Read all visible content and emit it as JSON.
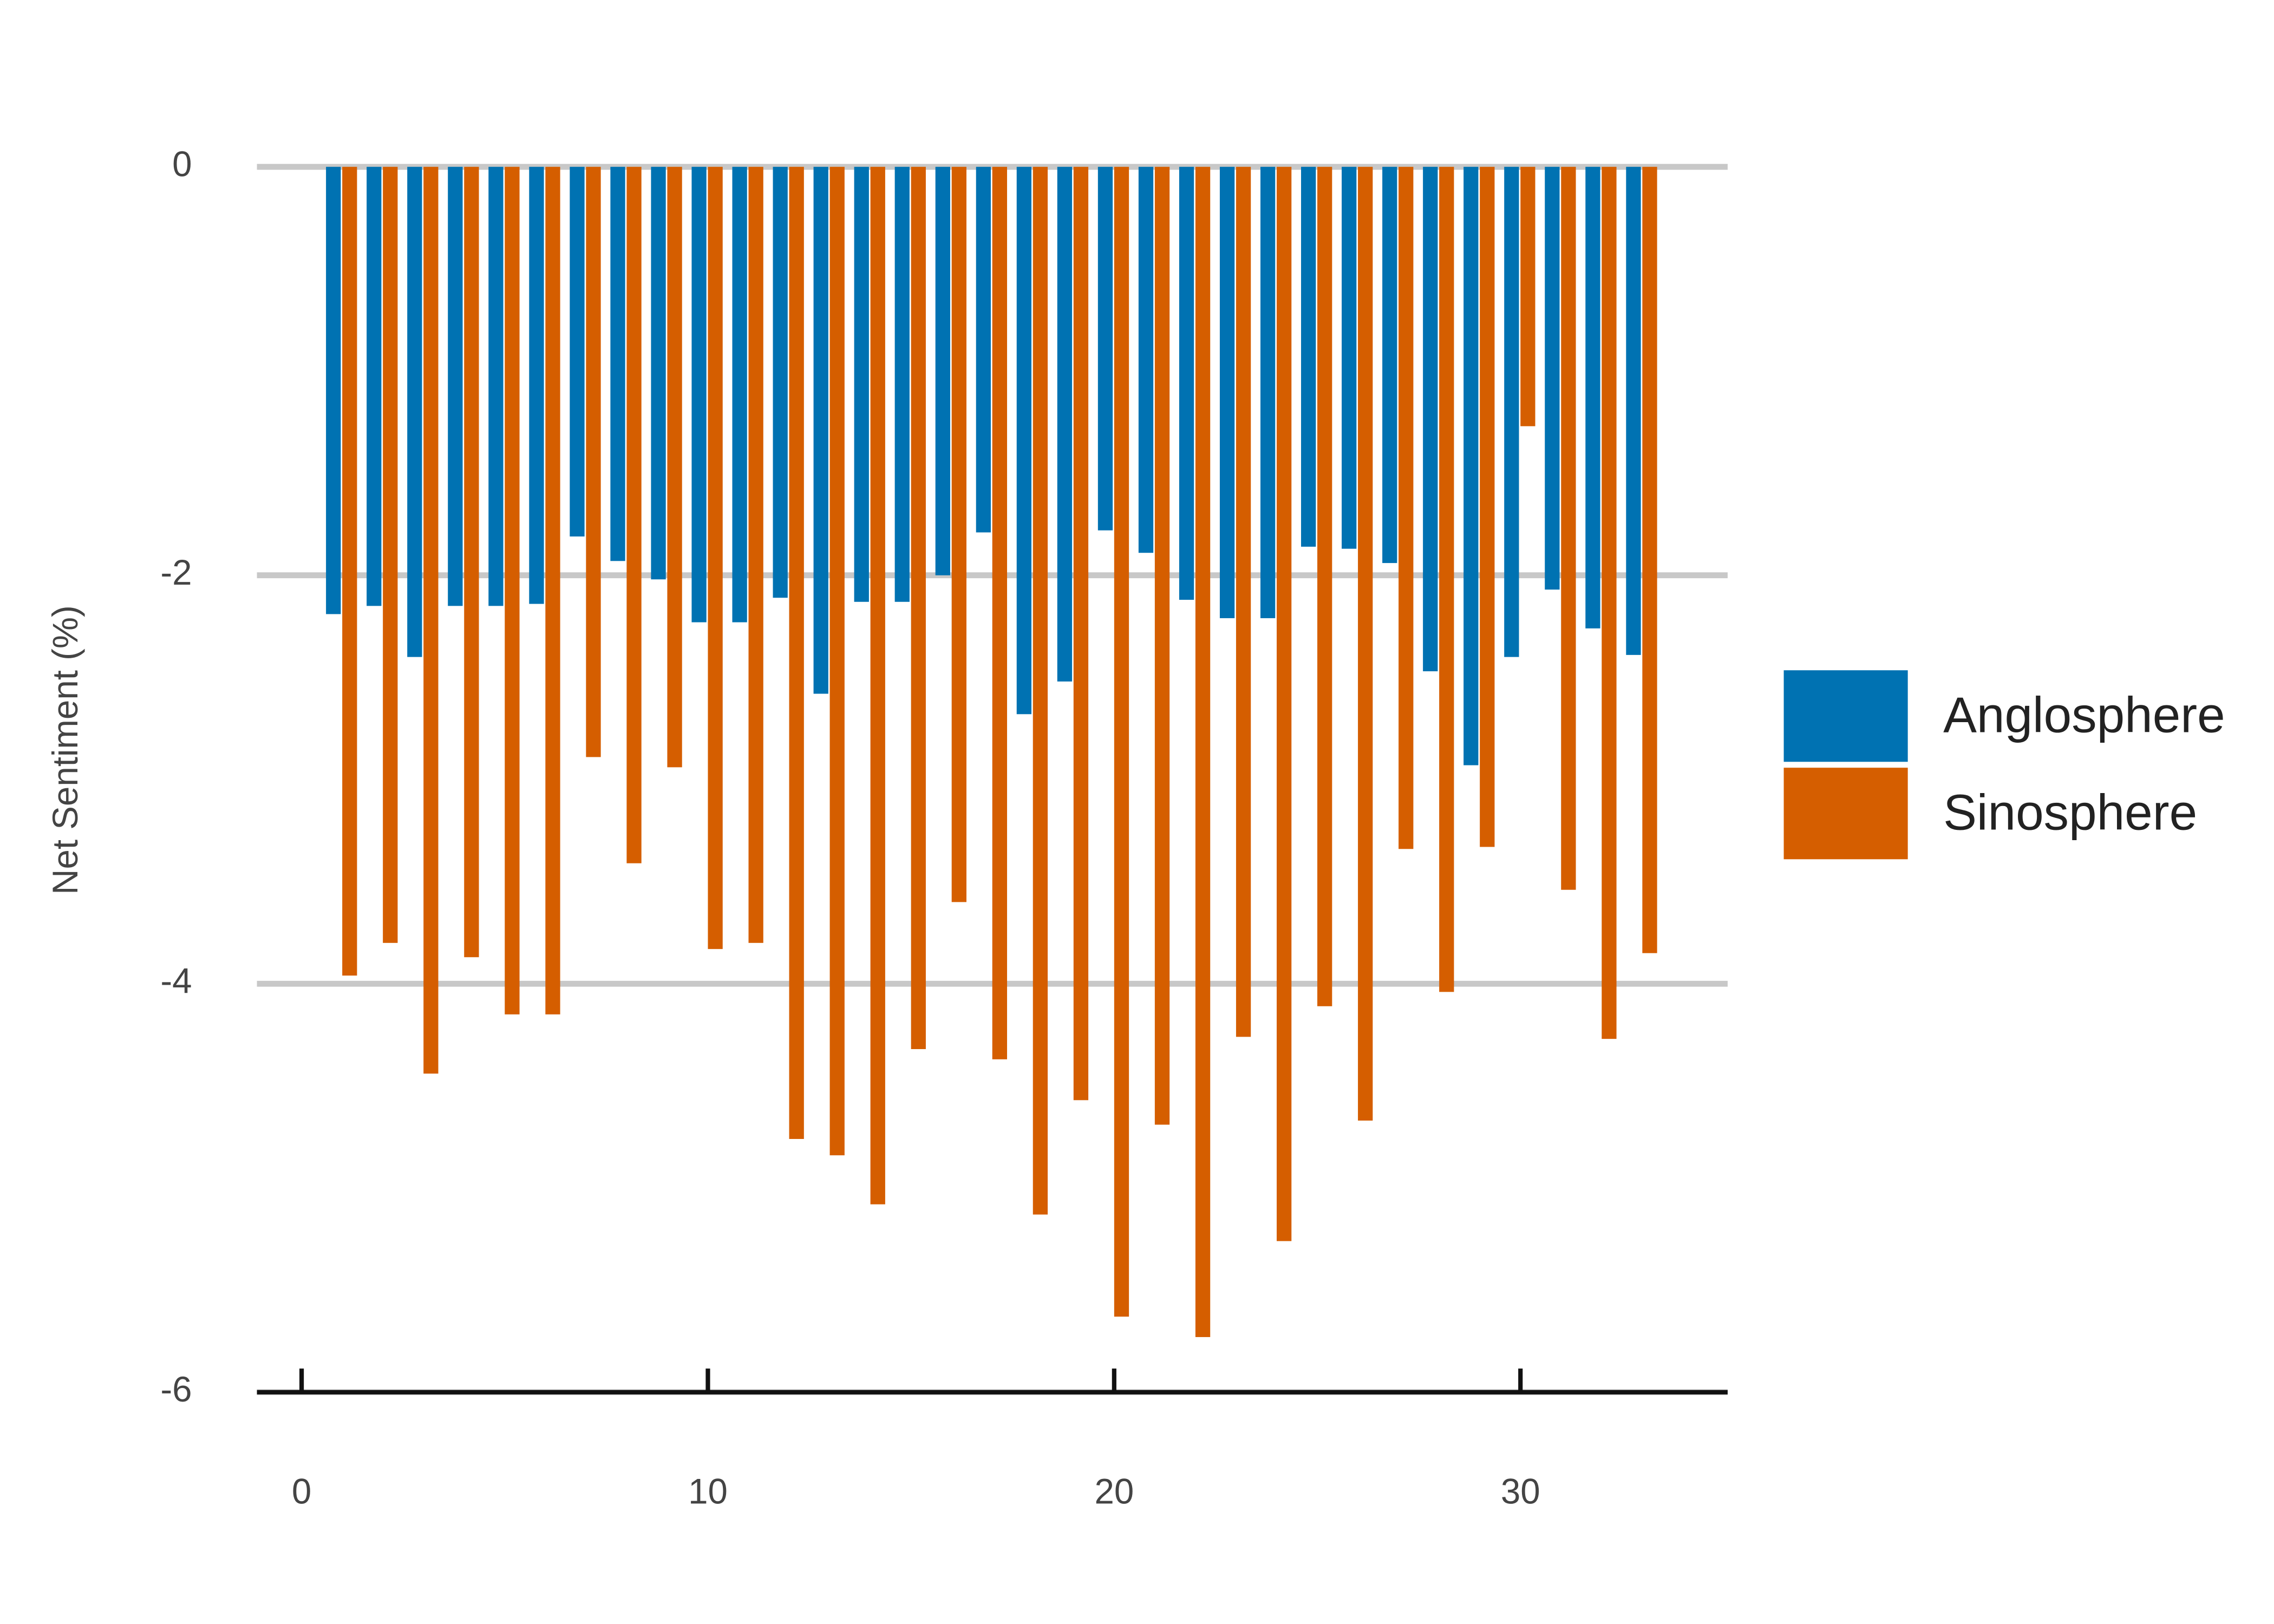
{
  "chart_data": {
    "type": "bar",
    "ylabel": "Net Sentiment (%)",
    "x": [
      1,
      2,
      3,
      4,
      5,
      6,
      7,
      8,
      9,
      10,
      11,
      12,
      13,
      14,
      15,
      16,
      17,
      18,
      19,
      20,
      21,
      22,
      23,
      24,
      25,
      26,
      27,
      28,
      29,
      30,
      31,
      32,
      33
    ],
    "series": [
      {
        "name": "Anglosphere",
        "color": "#0072b2",
        "values": [
          -2.19,
          -2.15,
          -2.4,
          -2.15,
          -2.15,
          -2.14,
          -1.81,
          -1.93,
          -2.02,
          -2.23,
          -2.23,
          -2.11,
          -2.58,
          -2.13,
          -2.13,
          -2.0,
          -1.79,
          -2.68,
          -2.52,
          -1.78,
          -1.89,
          -2.12,
          -2.21,
          -2.21,
          -1.86,
          -1.87,
          -1.94,
          -2.47,
          -2.93,
          -2.4,
          -2.07,
          -2.26,
          -2.39
        ]
      },
      {
        "name": "Sinosphere",
        "color": "#d55e00",
        "values": [
          -3.96,
          -3.8,
          -4.44,
          -3.87,
          -4.15,
          -4.15,
          -2.89,
          -3.41,
          -2.94,
          -3.83,
          -3.8,
          -4.76,
          -4.84,
          -5.08,
          -4.32,
          -3.6,
          -4.37,
          -5.13,
          -4.57,
          -5.63,
          -4.69,
          -5.73,
          -4.26,
          -5.26,
          -4.11,
          -4.67,
          -3.34,
          -4.04,
          -3.33,
          -1.27,
          -3.54,
          -4.27,
          -3.85
        ]
      }
    ],
    "xlim": [
      -1.1,
      35.1
    ],
    "xticks": [
      0,
      10,
      20,
      30
    ],
    "ylim": [
      -6,
      0
    ],
    "yticks": [
      0,
      -2,
      -4,
      -6
    ],
    "grid": true,
    "legend": "right"
  }
}
